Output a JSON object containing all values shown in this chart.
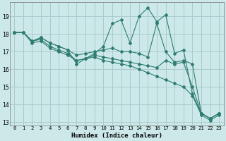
{
  "xlabel": "Humidex (Indice chaleur)",
  "ylabel": "",
  "xlim": [
    -0.5,
    23.5
  ],
  "ylim": [
    12.8,
    19.8
  ],
  "yticks": [
    13,
    14,
    15,
    16,
    17,
    18,
    19
  ],
  "xticks": [
    0,
    1,
    2,
    3,
    4,
    5,
    6,
    7,
    8,
    9,
    10,
    11,
    12,
    13,
    14,
    15,
    16,
    17,
    18,
    19,
    20,
    21,
    22,
    23
  ],
  "bg_color": "#cce8e8",
  "grid_color": "#aacccc",
  "line_color": "#2e7d6e",
  "lines": [
    [
      0,
      18.1,
      1,
      18.1,
      2,
      17.6,
      3,
      17.8,
      4,
      17.5,
      5,
      17.3,
      6,
      17.1,
      7,
      16.3,
      8,
      16.6,
      9,
      16.9,
      10,
      17.3,
      11,
      18.6,
      12,
      18.8,
      13,
      17.5,
      14,
      19.0,
      15,
      19.5,
      16,
      18.7,
      17,
      19.1,
      18,
      16.9,
      19,
      17.1,
      20,
      14.6,
      21,
      13.5,
      22,
      13.2,
      23,
      13.5
    ],
    [
      0,
      18.1,
      1,
      18.1,
      2,
      17.6,
      3,
      17.8,
      4,
      17.5,
      5,
      17.3,
      6,
      17.1,
      7,
      16.8,
      8,
      16.9,
      9,
      17.0,
      10,
      17.1,
      11,
      17.2,
      12,
      17.0,
      13,
      17.0,
      14,
      16.9,
      15,
      16.7,
      16,
      18.6,
      17,
      17.0,
      18,
      16.4,
      19,
      16.5,
      20,
      16.3,
      21,
      13.5,
      22,
      13.2,
      23,
      13.5
    ],
    [
      0,
      18.1,
      1,
      18.1,
      2,
      17.6,
      3,
      17.7,
      4,
      17.3,
      5,
      17.1,
      6,
      16.9,
      7,
      16.5,
      8,
      16.6,
      9,
      16.8,
      10,
      16.7,
      11,
      16.6,
      12,
      16.5,
      13,
      16.4,
      14,
      16.3,
      15,
      16.2,
      16,
      16.1,
      17,
      16.5,
      18,
      16.3,
      19,
      16.4,
      20,
      15.0,
      21,
      13.5,
      22,
      13.2,
      23,
      13.5
    ],
    [
      0,
      18.1,
      1,
      18.1,
      2,
      17.5,
      3,
      17.6,
      4,
      17.2,
      5,
      17.0,
      6,
      16.8,
      7,
      16.5,
      8,
      16.6,
      9,
      16.7,
      10,
      16.5,
      11,
      16.4,
      12,
      16.3,
      13,
      16.2,
      14,
      16.0,
      15,
      15.8,
      16,
      15.6,
      17,
      15.4,
      18,
      15.2,
      19,
      15.0,
      20,
      14.5,
      21,
      13.4,
      22,
      13.1,
      23,
      13.4
    ]
  ]
}
